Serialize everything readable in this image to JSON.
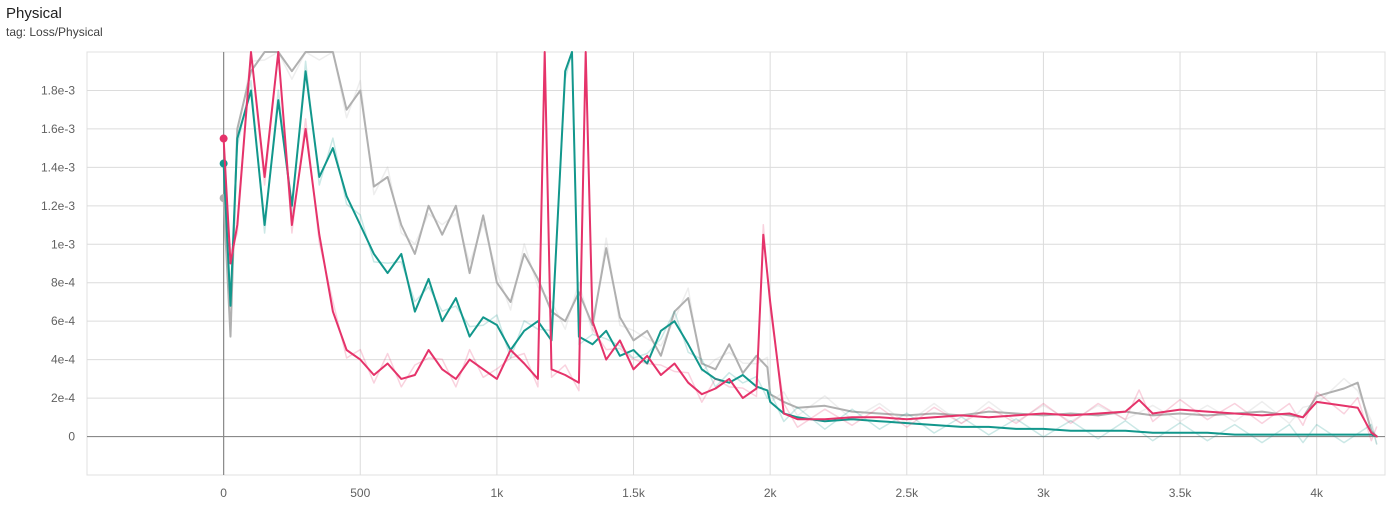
{
  "card": {
    "title": "Physical",
    "tag": "tag: Loss/Physical"
  },
  "chart_data": {
    "type": "line",
    "title": "Physical",
    "subtitle": "tag: Loss/Physical",
    "xlim": [
      -500,
      4250
    ],
    "ylim": [
      -0.0002,
      0.002
    ],
    "grid": true,
    "x_ticks": [
      {
        "value": 0,
        "label": "0"
      },
      {
        "value": 500,
        "label": "500"
      },
      {
        "value": 1000,
        "label": "1k"
      },
      {
        "value": 1500,
        "label": "1.5k"
      },
      {
        "value": 2000,
        "label": "2k"
      },
      {
        "value": 2500,
        "label": "2.5k"
      },
      {
        "value": 3000,
        "label": "3k"
      },
      {
        "value": 3500,
        "label": "3.5k"
      },
      {
        "value": 4000,
        "label": "4k"
      }
    ],
    "y_ticks": [
      {
        "value": 0,
        "label": "0"
      },
      {
        "value": 0.0002,
        "label": "2e-4"
      },
      {
        "value": 0.0004,
        "label": "4e-4"
      },
      {
        "value": 0.0006,
        "label": "6e-4"
      },
      {
        "value": 0.0008,
        "label": "8e-4"
      },
      {
        "value": 0.001,
        "label": "1e-3"
      },
      {
        "value": 0.0012,
        "label": "1.2e-3"
      },
      {
        "value": 0.0014,
        "label": "1.4e-3"
      },
      {
        "value": 0.0016,
        "label": "1.6e-3"
      },
      {
        "value": 0.0018,
        "label": "1.8e-3"
      }
    ],
    "series": [
      {
        "color": "#b0b0b0",
        "start_value": 0.00124,
        "x": [
          0,
          25,
          50,
          100,
          150,
          200,
          250,
          300,
          350,
          400,
          450,
          500,
          550,
          600,
          650,
          700,
          750,
          800,
          850,
          900,
          950,
          1000,
          1050,
          1100,
          1150,
          1200,
          1250,
          1300,
          1350,
          1400,
          1450,
          1500,
          1550,
          1600,
          1650,
          1700,
          1750,
          1800,
          1850,
          1900,
          1950,
          1990,
          2000,
          2050,
          2100,
          2200,
          2300,
          2400,
          2500,
          2600,
          2700,
          2800,
          2900,
          3000,
          3100,
          3200,
          3300,
          3400,
          3500,
          3600,
          3700,
          3800,
          3900,
          3950,
          4000,
          4100,
          4150,
          4200,
          4220
        ],
        "y": [
          0.00124,
          0.00052,
          0.0016,
          0.0019,
          0.0021,
          0.0022,
          0.0019,
          0.0024,
          0.0021,
          0.0022,
          0.0017,
          0.0018,
          0.0013,
          0.00135,
          0.0011,
          0.00095,
          0.0012,
          0.00105,
          0.0012,
          0.00085,
          0.00115,
          0.0008,
          0.0007,
          0.00095,
          0.00082,
          0.00065,
          0.0006,
          0.00075,
          0.00058,
          0.00098,
          0.00062,
          0.0005,
          0.00055,
          0.00042,
          0.00065,
          0.00072,
          0.00038,
          0.00035,
          0.00048,
          0.00033,
          0.00042,
          0.00036,
          0.00022,
          0.00018,
          0.00015,
          0.00016,
          0.00013,
          0.00012,
          0.00011,
          0.00012,
          0.00011,
          0.00013,
          0.00012,
          0.00011,
          0.00012,
          0.00011,
          0.00013,
          0.00011,
          0.00012,
          0.00011,
          0.00012,
          0.00013,
          0.00011,
          0.0001,
          0.00021,
          0.00025,
          0.00028,
          3e-05,
          0.0
        ]
      },
      {
        "color": "#12978c",
        "start_value": 0.00142,
        "x": [
          0,
          25,
          50,
          100,
          150,
          200,
          250,
          300,
          350,
          400,
          450,
          500,
          550,
          600,
          650,
          700,
          750,
          800,
          850,
          900,
          950,
          1000,
          1050,
          1100,
          1150,
          1200,
          1250,
          1275,
          1300,
          1350,
          1400,
          1450,
          1500,
          1550,
          1600,
          1650,
          1700,
          1750,
          1800,
          1850,
          1900,
          1950,
          1990,
          2000,
          2050,
          2100,
          2200,
          2300,
          2400,
          2500,
          2600,
          2700,
          2800,
          2900,
          3000,
          3100,
          3200,
          3300,
          3400,
          3500,
          3600,
          3700,
          3800,
          3900,
          3950,
          4000,
          4100,
          4200,
          4220
        ],
        "y": [
          0.00142,
          0.00068,
          0.00155,
          0.0018,
          0.0011,
          0.00175,
          0.0012,
          0.0019,
          0.00135,
          0.0015,
          0.00125,
          0.0011,
          0.00095,
          0.00085,
          0.00095,
          0.00065,
          0.00082,
          0.0006,
          0.00072,
          0.00052,
          0.00062,
          0.00058,
          0.00045,
          0.00055,
          0.0006,
          0.0005,
          0.0019,
          0.0022,
          0.00052,
          0.00048,
          0.00055,
          0.00042,
          0.00045,
          0.00038,
          0.00055,
          0.0006,
          0.00048,
          0.00035,
          0.0003,
          0.00028,
          0.00032,
          0.00026,
          0.00024,
          0.00018,
          0.00012,
          0.0001,
          8e-05,
          9e-05,
          8e-05,
          7e-05,
          6e-05,
          5e-05,
          5e-05,
          4e-05,
          4e-05,
          3e-05,
          3e-05,
          3e-05,
          2e-05,
          2e-05,
          2e-05,
          1e-05,
          1e-05,
          1e-05,
          1e-05,
          1e-05,
          1e-05,
          1e-05,
          0.0
        ]
      },
      {
        "color": "#e5336a",
        "start_value": 0.00155,
        "x": [
          0,
          25,
          50,
          100,
          150,
          200,
          250,
          300,
          350,
          400,
          450,
          500,
          550,
          600,
          650,
          700,
          750,
          800,
          850,
          900,
          950,
          1000,
          1050,
          1100,
          1150,
          1175,
          1200,
          1250,
          1300,
          1325,
          1350,
          1400,
          1450,
          1500,
          1550,
          1600,
          1650,
          1700,
          1750,
          1800,
          1850,
          1900,
          1950,
          1975,
          2000,
          2050,
          2100,
          2200,
          2300,
          2400,
          2500,
          2600,
          2700,
          2800,
          2900,
          3000,
          3100,
          3200,
          3300,
          3350,
          3400,
          3500,
          3600,
          3700,
          3800,
          3900,
          3950,
          4000,
          4100,
          4150,
          4200,
          4220
        ],
        "y": [
          0.00155,
          0.0009,
          0.0011,
          0.0021,
          0.00135,
          0.0022,
          0.0011,
          0.0016,
          0.00105,
          0.00065,
          0.00045,
          0.0004,
          0.00032,
          0.00038,
          0.0003,
          0.00032,
          0.00045,
          0.00035,
          0.0003,
          0.0004,
          0.00035,
          0.0003,
          0.00045,
          0.00038,
          0.0003,
          0.0021,
          0.00035,
          0.00032,
          0.00028,
          0.0022,
          0.0006,
          0.0004,
          0.0005,
          0.00035,
          0.00042,
          0.00032,
          0.00038,
          0.00028,
          0.00022,
          0.00025,
          0.0003,
          0.0002,
          0.00025,
          0.00105,
          0.0007,
          0.00012,
          9e-05,
          9e-05,
          0.0001,
          0.0001,
          9e-05,
          0.0001,
          0.00011,
          0.0001,
          0.00011,
          0.00012,
          0.00011,
          0.00012,
          0.00013,
          0.00019,
          0.00012,
          0.00014,
          0.00013,
          0.00012,
          0.00011,
          0.00012,
          0.0001,
          0.00018,
          0.00016,
          0.00015,
          2e-05,
          0.0
        ]
      }
    ]
  }
}
